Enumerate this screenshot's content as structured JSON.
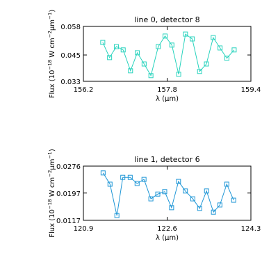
{
  "chart_data": [
    {
      "type": "line",
      "title": "line 0, detector 8",
      "xlabel": "λ (μm)",
      "ylabel": [
        "Flux (10",
        "−18",
        " W cm",
        "−2",
        "μm",
        "−1",
        ")"
      ],
      "x": [
        156.57,
        156.7,
        156.83,
        156.96,
        157.1,
        157.23,
        157.36,
        157.49,
        157.63,
        157.76,
        157.89,
        158.02,
        158.15,
        158.28,
        158.42,
        158.55,
        158.68,
        158.81,
        158.94,
        159.08
      ],
      "series": [
        {
          "color": "#27d3bd",
          "values": [
            0.0507,
            0.0438,
            0.0488,
            0.0473,
            0.0378,
            0.046,
            0.0409,
            0.0356,
            0.0488,
            0.0536,
            0.0495,
            0.0362,
            0.0545,
            0.0523,
            0.0375,
            0.0409,
            0.0529,
            0.0482,
            0.0435,
            0.0473
          ]
        }
      ],
      "xlim": [
        156.2,
        159.4
      ],
      "xticks": [
        156.2,
        157.8,
        159.4
      ],
      "ylim": [
        0.033,
        0.058
      ],
      "yticks": [
        0.033,
        0.045,
        0.058
      ]
    },
    {
      "type": "line",
      "title": "line 1, detector 6",
      "xlabel": "λ (μm)",
      "ylabel": [
        "Flux (10",
        "−18",
        " W cm",
        "−2",
        "μm",
        "−1",
        ")"
      ],
      "x": [
        121.3,
        121.44,
        121.58,
        121.7,
        121.85,
        121.99,
        122.13,
        122.27,
        122.41,
        122.55,
        122.69,
        122.83,
        122.97,
        123.12,
        123.26,
        123.4,
        123.54,
        123.67,
        123.81,
        123.95
      ],
      "series": [
        {
          "color": "#1e96d6",
          "values": [
            0.0256,
            0.0223,
            0.0131,
            0.0243,
            0.0243,
            0.0225,
            0.0237,
            0.018,
            0.0194,
            0.0201,
            0.0154,
            0.0231,
            0.0203,
            0.018,
            0.0152,
            0.0203,
            0.0141,
            0.0162,
            0.0223,
            0.0176
          ]
        }
      ],
      "xlim": [
        120.9,
        124.3
      ],
      "xticks": [
        120.9,
        122.6,
        124.3
      ],
      "ylim": [
        0.0117,
        0.0276
      ],
      "yticks": [
        0.0117,
        0.0197,
        0.0276
      ]
    }
  ]
}
